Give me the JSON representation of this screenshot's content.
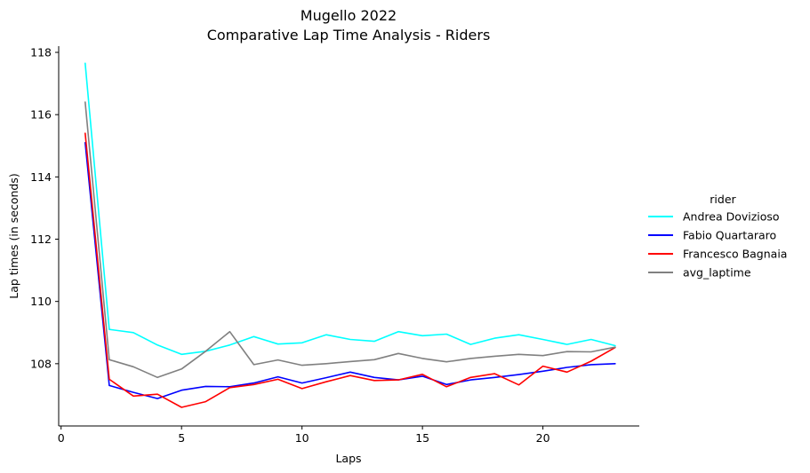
{
  "chart_data": {
    "type": "line",
    "title": "Mugello 2022",
    "subtitle": "Comparative Lap Time Analysis - Riders",
    "xlabel": "Laps",
    "ylabel": "Lap times (in seconds)",
    "xlim": [
      -0.1,
      24.0
    ],
    "ylim": [
      106.0,
      118.2
    ],
    "xticks": [
      0,
      5,
      10,
      15,
      20
    ],
    "yticks": [
      108,
      110,
      112,
      114,
      116,
      118
    ],
    "legend_title": "rider",
    "legend_placement": "right",
    "grid": false,
    "x": [
      1,
      2,
      3,
      4,
      5,
      6,
      7,
      8,
      9,
      10,
      11,
      12,
      13,
      14,
      15,
      16,
      17,
      18,
      19,
      20,
      21,
      22,
      23
    ],
    "series": [
      {
        "name": "Andrea Dovizioso",
        "color": "#00ffff",
        "values": [
          117.65,
          109.1,
          109.0,
          108.6,
          108.3,
          108.4,
          108.6,
          108.87,
          108.63,
          108.67,
          108.93,
          108.78,
          108.72,
          109.03,
          108.9,
          108.95,
          108.62,
          108.82,
          108.93,
          108.78,
          108.62,
          108.78,
          108.58
        ]
      },
      {
        "name": "Fabio Quartararo",
        "color": "#0000ff",
        "values": [
          115.1,
          107.3,
          107.08,
          106.88,
          107.15,
          107.27,
          107.26,
          107.38,
          107.58,
          107.38,
          107.55,
          107.73,
          107.56,
          107.48,
          107.6,
          107.33,
          107.48,
          107.56,
          107.65,
          107.76,
          107.88,
          107.97,
          108.0
        ]
      },
      {
        "name": "Francesco Bagnaia",
        "color": "#ff0000",
        "values": [
          115.4,
          107.5,
          106.96,
          107.02,
          106.6,
          106.78,
          107.23,
          107.33,
          107.5,
          107.2,
          107.42,
          107.62,
          107.46,
          107.48,
          107.66,
          107.26,
          107.56,
          107.68,
          107.32,
          107.92,
          107.73,
          108.08,
          108.52
        ]
      },
      {
        "name": "avg_laptime",
        "color": "#808080",
        "values": [
          116.4,
          108.13,
          107.9,
          107.56,
          107.83,
          108.4,
          109.03,
          107.97,
          108.12,
          107.95,
          108.0,
          108.07,
          108.13,
          108.33,
          108.17,
          108.06,
          108.17,
          108.24,
          108.3,
          108.26,
          108.39,
          108.38,
          108.53
        ]
      }
    ]
  }
}
